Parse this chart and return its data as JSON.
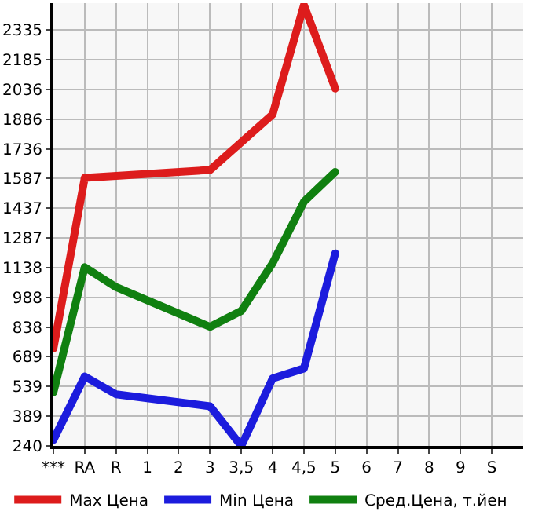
{
  "chart_data": {
    "type": "line",
    "categories": [
      "***",
      "RA",
      "R",
      "1",
      "2",
      "3",
      "3,5",
      "4",
      "4,5",
      "5",
      "6",
      "7",
      "8",
      "9",
      "S"
    ],
    "series": [
      {
        "name": "Max Цена",
        "color": "#dd1c1c",
        "values": [
          730,
          1590,
          null,
          null,
          null,
          1630,
          null,
          1910,
          2460,
          2040,
          null,
          null,
          null,
          null,
          null
        ]
      },
      {
        "name": "Min Цена",
        "color": "#1c1cdd",
        "values": [
          270,
          590,
          500,
          null,
          null,
          440,
          240,
          580,
          630,
          1210,
          null,
          null,
          null,
          null,
          null
        ]
      },
      {
        "name": "Сред.Цена, т.йен",
        "color": "#108010",
        "values": [
          510,
          1140,
          1040,
          null,
          null,
          840,
          920,
          1160,
          1470,
          1620,
          null,
          null,
          null,
          null,
          null
        ]
      }
    ],
    "ylim": [
      240,
      2470
    ],
    "yticks": [
      240,
      389,
      539,
      689,
      838,
      988,
      1138,
      1287,
      1437,
      1587,
      1736,
      1886,
      2036,
      2185,
      2335
    ],
    "grid": true,
    "legend": "bottom",
    "marker": "none",
    "line_style": "solid"
  }
}
